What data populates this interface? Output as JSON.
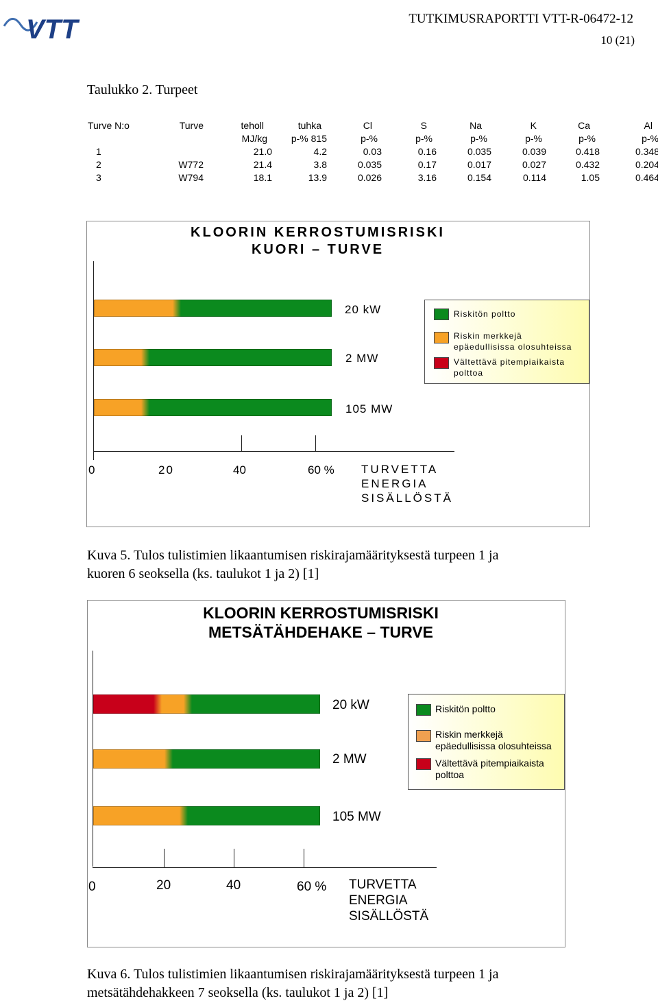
{
  "header": {
    "logo_text": "VTT",
    "report_id": "TUTKIMUSRAPORTTI VTT-R-06472-12",
    "page": "10 (21)"
  },
  "table": {
    "title": "Taulukko 2. Turpeet",
    "header_row1": [
      "Turve N:o",
      "Turve",
      "teholl",
      "tuhka",
      "Cl",
      "S",
      "Na",
      "K",
      "Ca",
      "Al"
    ],
    "header_row2": [
      "",
      "",
      "MJ/kg",
      "p-% 815",
      "p-%",
      "p-%",
      "p-%",
      "p-%",
      "p-%",
      "p-%"
    ],
    "rows": [
      [
        "1",
        "",
        "21.0",
        "4.2",
        "0.03",
        "0.16",
        "0.035",
        "0.039",
        "0.418",
        "0.348"
      ],
      [
        "2",
        "W772",
        "21.4",
        "3.8",
        "0.035",
        "0.17",
        "0.017",
        "0.027",
        "0.432",
        "0.204"
      ],
      [
        "3",
        "W794",
        "18.1",
        "13.9",
        "0.026",
        "3.16",
        "0.154",
        "0.114",
        "1.05",
        "0.464"
      ]
    ]
  },
  "colors": {
    "safe": "#0b8a1e",
    "risk": "#f7a226",
    "avoid": "#c8001a",
    "legend_bg": "#fefcb0"
  },
  "figure5": {
    "title_line1": "KLOORIN KERROSTUMISRISKI",
    "title_line2": "KUORI – TURVE",
    "bar_labels": [
      "20 kW",
      "2 MW",
      "105 MW"
    ],
    "legend": {
      "safe": "Riskitön poltto",
      "risk_line1": "Riskin merkkejä",
      "risk_line2": "epäedullisissa olosuhteissa",
      "avoid_line1": "Vältettävä pitempiaikaista",
      "avoid_line2": "polttoa"
    },
    "ticks": [
      "0",
      "20",
      "40",
      "60 %"
    ],
    "axis_title_lines": [
      "TURVETTA",
      "ENERGIA",
      "SISÄLLÖSTÄ"
    ],
    "caption_line1": "Kuva 5. Tulos tulistimien likaantumisen riskirajamäärityksestä turpeen 1 ja",
    "caption_line2": "kuoren 6 seoksella (ks. taulukot 1 ja 2) [1]"
  },
  "figure6": {
    "title_line1": "KLOORIN KERROSTUMISRISKI",
    "title_line2": "METSÄTÄHDEHAKE – TURVE",
    "bar_labels": [
      "20 kW",
      "2 MW",
      "105 MW"
    ],
    "legend": {
      "safe": "Riskitön poltto",
      "risk_line1": "Riskin merkkejä",
      "risk_line2": "epäedullisissa olosuhteissa",
      "avoid_line1": "Vältettävä pitempiaikaista",
      "avoid_line2": "polttoa"
    },
    "ticks": [
      "0",
      "20",
      "40",
      "60 %"
    ],
    "axis_title_lines": [
      "TURVETTA",
      "ENERGIA",
      "SISÄLLÖSTÄ"
    ],
    "caption_line1": "Kuva 6. Tulos tulistimien likaantumisen riskirajamäärityksestä turpeen 1 ja",
    "caption_line2": "metsätähdehakkeen 7 seoksella (ks. taulukot 1 ja 2) [1]"
  },
  "chart_data": [
    {
      "type": "bar",
      "title": "KLOORIN KERROSTUMISRISKI KUORI – TURVE",
      "categories": [
        "20 kW",
        "2 MW",
        "105 MW"
      ],
      "xlabel": "TURVETTA ENERGIA SISÄLLÖSTÄ",
      "xlim": [
        0,
        60
      ],
      "series": [
        {
          "name": "Riskitön poltto",
          "color": "#0b8a1e",
          "ranges": [
            [
              21,
              60
            ],
            [
              13,
              60
            ],
            [
              13,
              60
            ]
          ]
        },
        {
          "name": "Riskin merkkejä epäedullisissa olosuhteissa",
          "color": "#f7a226",
          "ranges": [
            [
              0,
              21
            ],
            [
              0,
              13
            ],
            [
              0,
              13
            ]
          ]
        },
        {
          "name": "Vältettävä pitempiaikaista polttoa",
          "color": "#c8001a",
          "ranges": [
            null,
            null,
            null
          ]
        }
      ]
    },
    {
      "type": "bar",
      "title": "KLOORIN KERROSTUMISRISKI METSÄTÄHDEHAKE – TURVE",
      "categories": [
        "20 kW",
        "2 MW",
        "105 MW"
      ],
      "xlabel": "TURVETTA ENERGIA SISÄLLÖSTÄ",
      "xlim": [
        0,
        60
      ],
      "series": [
        {
          "name": "Riskitön poltto",
          "color": "#0b8a1e",
          "ranges": [
            [
              25,
              60
            ],
            [
              20,
              60
            ],
            [
              24,
              60
            ]
          ]
        },
        {
          "name": "Riskin merkkejä epäedullisissa olosuhteissa",
          "color": "#f7a226",
          "ranges": [
            [
              17,
              25
            ],
            [
              0,
              20
            ],
            [
              0,
              24
            ]
          ]
        },
        {
          "name": "Vältettävä pitempiaikaista polttoa",
          "color": "#c8001a",
          "ranges": [
            [
              0,
              17
            ],
            null,
            null
          ]
        }
      ]
    }
  ]
}
